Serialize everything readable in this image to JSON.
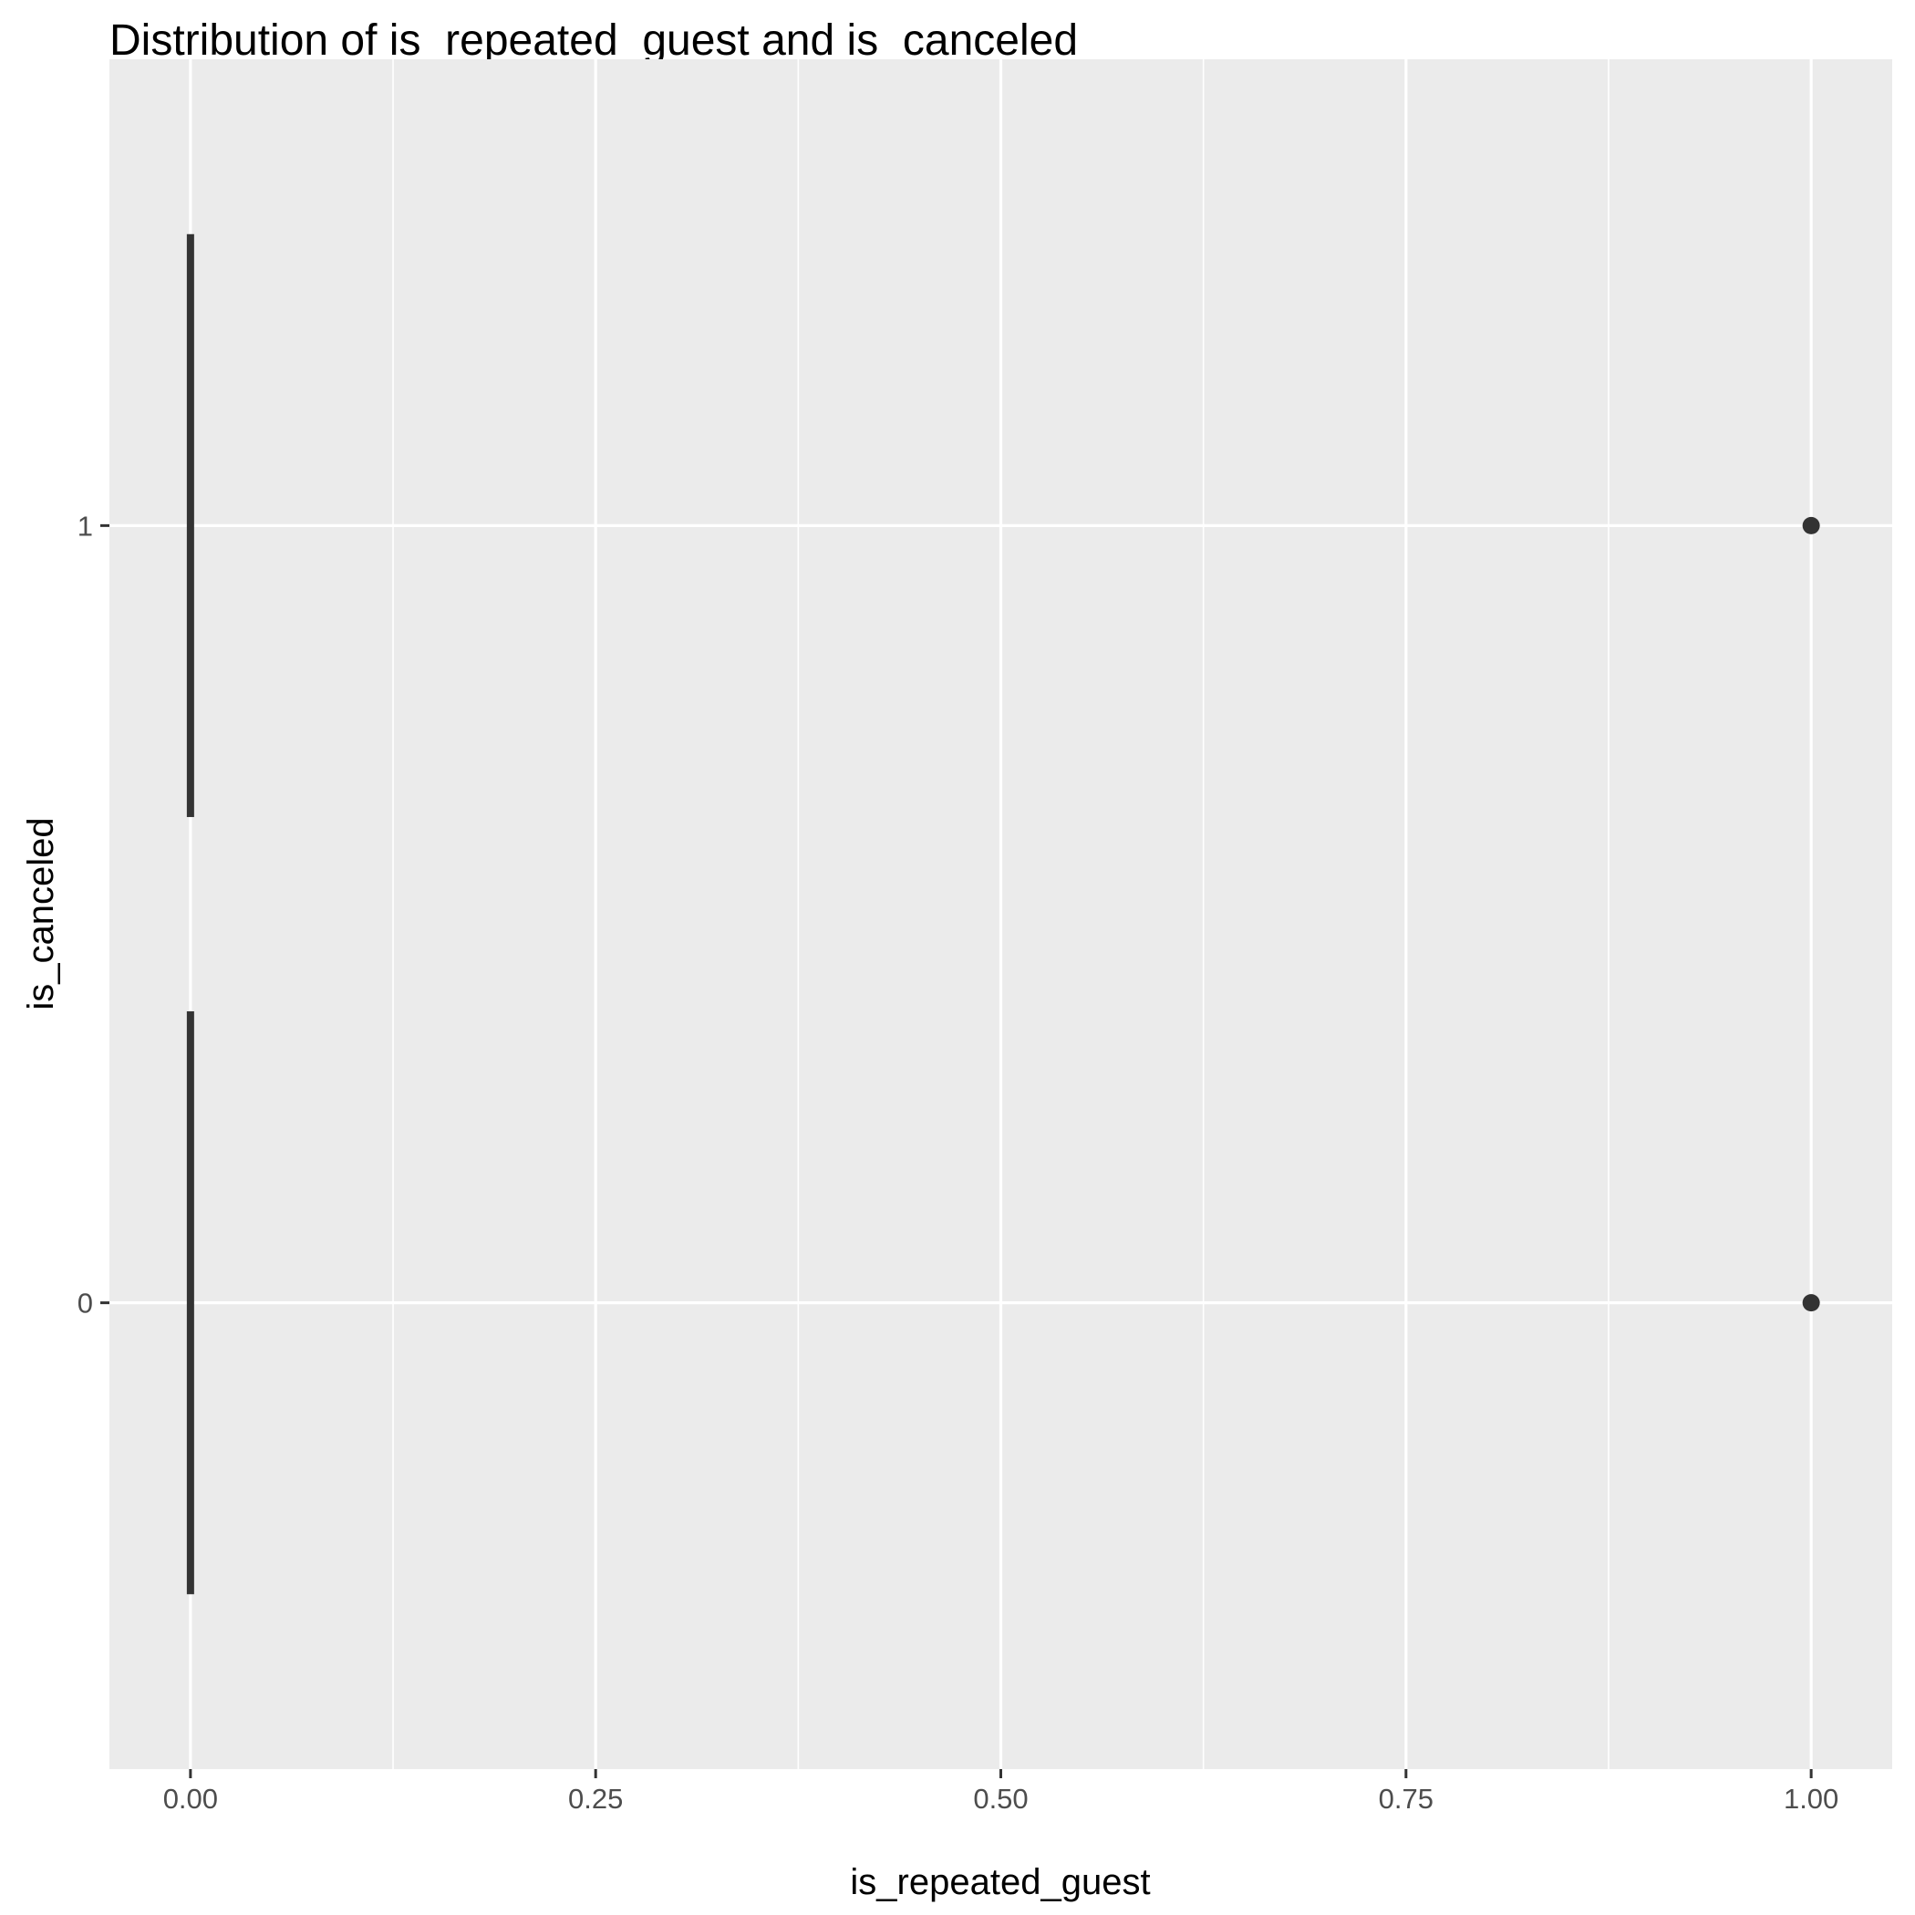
{
  "chart_data": {
    "type": "boxplot",
    "title": "Distribution of is_repeated_guest and is_canceled",
    "xlabel": "is_repeated_guest",
    "ylabel": "is_canceled",
    "xlim": [
      -0.05,
      1.05
    ],
    "x_ticks": [
      "0.00",
      "0.25",
      "0.50",
      "0.75",
      "1.00"
    ],
    "x_tick_values": [
      0,
      0.25,
      0.5,
      0.75,
      1
    ],
    "categories": [
      "0",
      "1"
    ],
    "groups": [
      {
        "category": "0",
        "min": 0,
        "q1": 0,
        "median": 0,
        "q3": 0,
        "max": 0,
        "outliers": [
          1
        ]
      },
      {
        "category": "1",
        "min": 0,
        "q1": 0,
        "median": 0,
        "q3": 0,
        "max": 0,
        "outliers": [
          1
        ]
      }
    ],
    "grid": true,
    "colors": {
      "panel": "#ebebeb",
      "grid": "#ffffff",
      "box": "#333333",
      "tick": "#4d4d4d"
    }
  }
}
